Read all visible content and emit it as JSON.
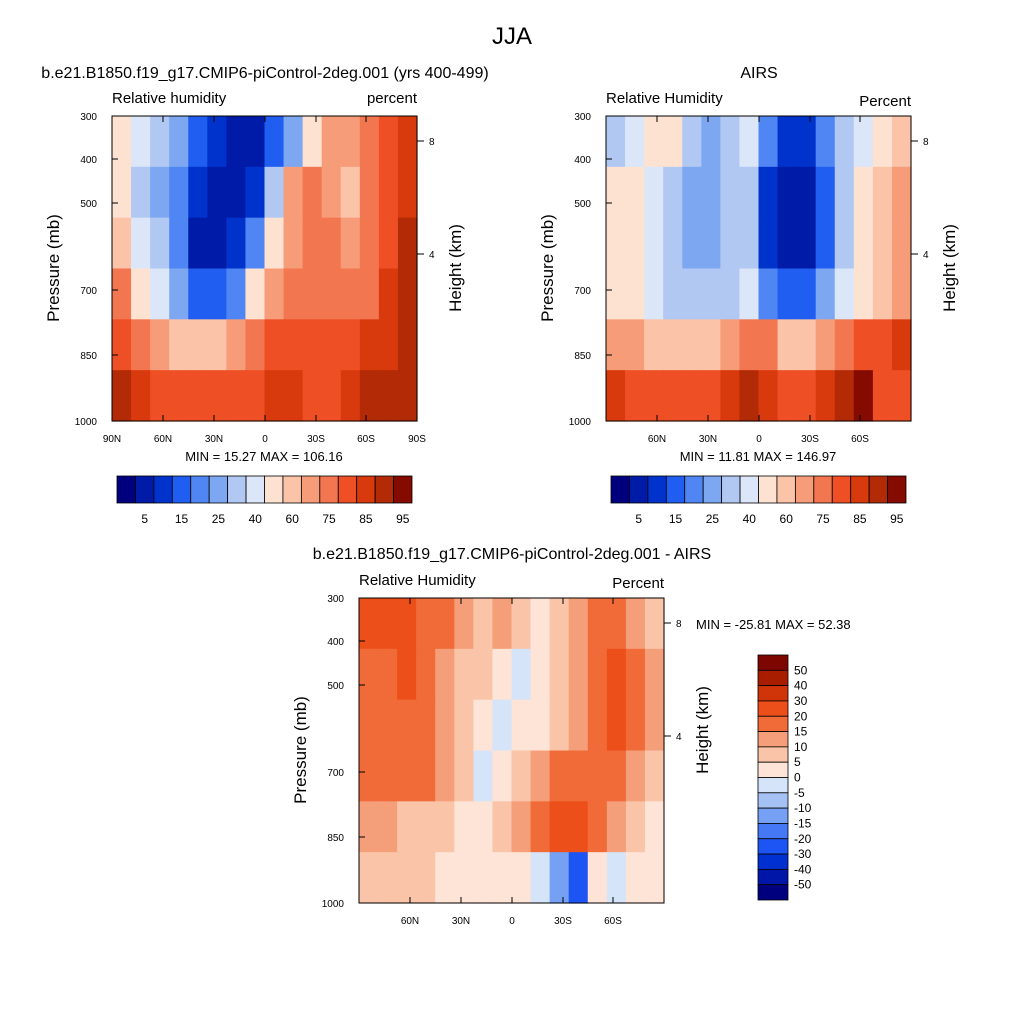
{
  "figure_title": "JJA",
  "palettes": {
    "absolute": [
      "#00007f",
      "#001ba8",
      "#0033cc",
      "#1f5ef0",
      "#4f86f4",
      "#7ea7f2",
      "#b1c8f3",
      "#dbe6f8",
      "#fde2d2",
      "#fbc3a8",
      "#f79c78",
      "#f2764f",
      "#ee4f24",
      "#d93a0d",
      "#b22a06",
      "#850b00"
    ],
    "diff": [
      "#00007f",
      "#0016a8",
      "#0030cf",
      "#1c55f3",
      "#4478f5",
      "#76a0f4",
      "#a6c2f4",
      "#d5e4f8",
      "#fde4d6",
      "#f9c4a7",
      "#f59e7a",
      "#f06b38",
      "#ed4f1a",
      "#cf3509",
      "#a81c00",
      "#7e0600"
    ]
  },
  "chart_data": [
    {
      "type": "heatmap",
      "title": "b.e21.B1850.f19_g17.CMIP6-piControl-2deg.001 (yrs 400-499)",
      "left_string": "Relative humidity",
      "right_string": "percent",
      "ylabel": "Pressure (mb)",
      "y2label": "Height (km)",
      "x_ticks": [
        "90N",
        "60N",
        "30N",
        "0",
        "30S",
        "60S",
        "90S"
      ],
      "y_ticks": [
        "300",
        "400",
        "500",
        "700",
        "850",
        "1000"
      ],
      "height_ticks": [
        "8",
        "4"
      ],
      "min_max": "MIN =  15.27  MAX = 106.16",
      "colorbar_labels": [
        "5",
        "15",
        "25",
        "40",
        "60",
        "75",
        "85",
        "95"
      ],
      "colorbar_levels": [
        5,
        10,
        15,
        20,
        25,
        30,
        40,
        50,
        60,
        70,
        75,
        80,
        85,
        90,
        95
      ],
      "levels": [
        [
          8,
          7,
          6,
          5,
          3,
          2,
          1,
          1,
          3,
          5,
          8,
          10,
          10,
          11,
          12,
          13
        ],
        [
          8,
          6,
          5,
          4,
          2,
          1,
          1,
          2,
          6,
          10,
          11,
          10,
          9,
          11,
          12,
          13
        ],
        [
          9,
          7,
          6,
          4,
          1,
          1,
          2,
          4,
          8,
          10,
          11,
          11,
          10,
          11,
          12,
          14
        ],
        [
          11,
          8,
          7,
          5,
          3,
          3,
          4,
          8,
          10,
          11,
          11,
          11,
          11,
          11,
          13,
          14
        ],
        [
          12,
          11,
          10,
          9,
          9,
          9,
          10,
          11,
          12,
          12,
          12,
          12,
          12,
          13,
          13,
          14
        ],
        [
          14,
          13,
          12,
          12,
          12,
          12,
          12,
          12,
          13,
          13,
          12,
          12,
          13,
          14,
          14,
          14
        ]
      ]
    },
    {
      "type": "heatmap",
      "title": "AIRS",
      "left_string": "Relative Humidity",
      "right_string": "Percent",
      "ylabel": "Pressure (mb)",
      "y2label": "Height (km)",
      "x_ticks": [
        "60N",
        "30N",
        "0",
        "30S",
        "60S"
      ],
      "y_ticks": [
        "300",
        "400",
        "500",
        "700",
        "850",
        "1000"
      ],
      "height_ticks": [
        "8",
        "4"
      ],
      "min_max": "MIN =  11.81  MAX = 146.97",
      "colorbar_labels": [
        "5",
        "15",
        "25",
        "40",
        "60",
        "75",
        "85",
        "95"
      ],
      "colorbar_levels": [
        5,
        10,
        15,
        20,
        25,
        30,
        40,
        50,
        60,
        70,
        75,
        80,
        85,
        90,
        95
      ],
      "levels": [
        [
          6,
          7,
          8,
          8,
          6,
          5,
          6,
          7,
          4,
          2,
          2,
          4,
          6,
          7,
          8,
          9
        ],
        [
          8,
          8,
          7,
          6,
          5,
          5,
          6,
          6,
          2,
          1,
          1,
          3,
          6,
          8,
          9,
          10
        ],
        [
          8,
          8,
          7,
          6,
          5,
          5,
          6,
          6,
          2,
          1,
          1,
          3,
          6,
          8,
          9,
          10
        ],
        [
          8,
          8,
          7,
          6,
          6,
          6,
          6,
          7,
          4,
          3,
          3,
          5,
          7,
          8,
          9,
          10
        ],
        [
          10,
          10,
          9,
          9,
          9,
          9,
          10,
          11,
          11,
          9,
          9,
          10,
          11,
          12,
          12,
          13
        ],
        [
          13,
          12,
          12,
          12,
          12,
          12,
          13,
          14,
          13,
          12,
          12,
          13,
          14,
          15,
          12,
          12
        ]
      ]
    },
    {
      "type": "heatmap",
      "title": "b.e21.B1850.f19_g17.CMIP6-piControl-2deg.001 - AIRS",
      "left_string": "Relative Humidity",
      "right_string": "Percent",
      "ylabel": "Pressure (mb)",
      "y2label": "Height (km)",
      "x_ticks": [
        "60N",
        "30N",
        "0",
        "30S",
        "60S"
      ],
      "y_ticks": [
        "300",
        "400",
        "500",
        "700",
        "850",
        "1000"
      ],
      "height_ticks": [
        "8",
        "4"
      ],
      "min_max": "MIN = -25.81  MAX =  52.38",
      "colorbar_labels": [
        "50",
        "40",
        "30",
        "20",
        "15",
        "10",
        "5",
        "0",
        "-5",
        "-10",
        "-15",
        "-20",
        "-30",
        "-40",
        "-50"
      ],
      "colorbar_levels": [
        -50,
        -40,
        -30,
        -20,
        -15,
        -10,
        -5,
        0,
        5,
        10,
        15,
        20,
        30,
        40,
        50
      ],
      "levels": [
        [
          12,
          12,
          12,
          11,
          11,
          10,
          9,
          10,
          9,
          8,
          9,
          10,
          11,
          11,
          10,
          9
        ],
        [
          11,
          11,
          12,
          11,
          10,
          9,
          9,
          8,
          7,
          8,
          9,
          10,
          11,
          12,
          11,
          10
        ],
        [
          11,
          11,
          11,
          11,
          10,
          9,
          8,
          7,
          8,
          8,
          9,
          10,
          11,
          12,
          11,
          10
        ],
        [
          11,
          11,
          11,
          11,
          10,
          9,
          7,
          8,
          9,
          10,
          11,
          11,
          11,
          11,
          10,
          9
        ],
        [
          10,
          10,
          9,
          9,
          9,
          8,
          8,
          9,
          10,
          11,
          12,
          12,
          11,
          10,
          9,
          8
        ],
        [
          9,
          9,
          9,
          9,
          8,
          8,
          8,
          8,
          8,
          7,
          5,
          3,
          8,
          7,
          8,
          8
        ]
      ]
    }
  ]
}
